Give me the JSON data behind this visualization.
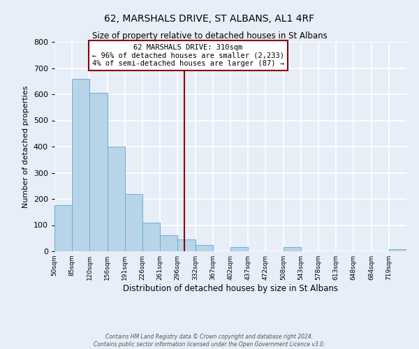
{
  "title": "62, MARSHALS DRIVE, ST ALBANS, AL1 4RF",
  "subtitle": "Size of property relative to detached houses in St Albans",
  "xlabel": "Distribution of detached houses by size in St Albans",
  "ylabel": "Number of detached properties",
  "bin_edges": [
    50,
    85,
    120,
    156,
    191,
    226,
    261,
    296,
    332,
    367,
    402,
    437,
    472,
    508,
    543,
    578,
    613,
    648,
    684,
    719,
    754
  ],
  "bar_heights": [
    175,
    660,
    605,
    400,
    218,
    110,
    62,
    45,
    25,
    0,
    17,
    0,
    0,
    15,
    0,
    0,
    0,
    0,
    0,
    8
  ],
  "bar_color": "#b8d4e8",
  "bar_edgecolor": "#6baed6",
  "vline_x": 310,
  "vline_color": "#8b0000",
  "ylim": [
    0,
    800
  ],
  "yticks": [
    0,
    100,
    200,
    300,
    400,
    500,
    600,
    700,
    800
  ],
  "annotation_title": "62 MARSHALS DRIVE: 310sqm",
  "annotation_line1": "← 96% of detached houses are smaller (2,233)",
  "annotation_line2": "4% of semi-detached houses are larger (87) →",
  "annotation_box_facecolor": "#ffffff",
  "annotation_box_edgecolor": "#8b0000",
  "footer_line1": "Contains HM Land Registry data © Crown copyright and database right 2024.",
  "footer_line2": "Contains public sector information licensed under the Open Government Licence v3.0.",
  "background_color": "#e8eef8",
  "grid_color": "#ffffff"
}
